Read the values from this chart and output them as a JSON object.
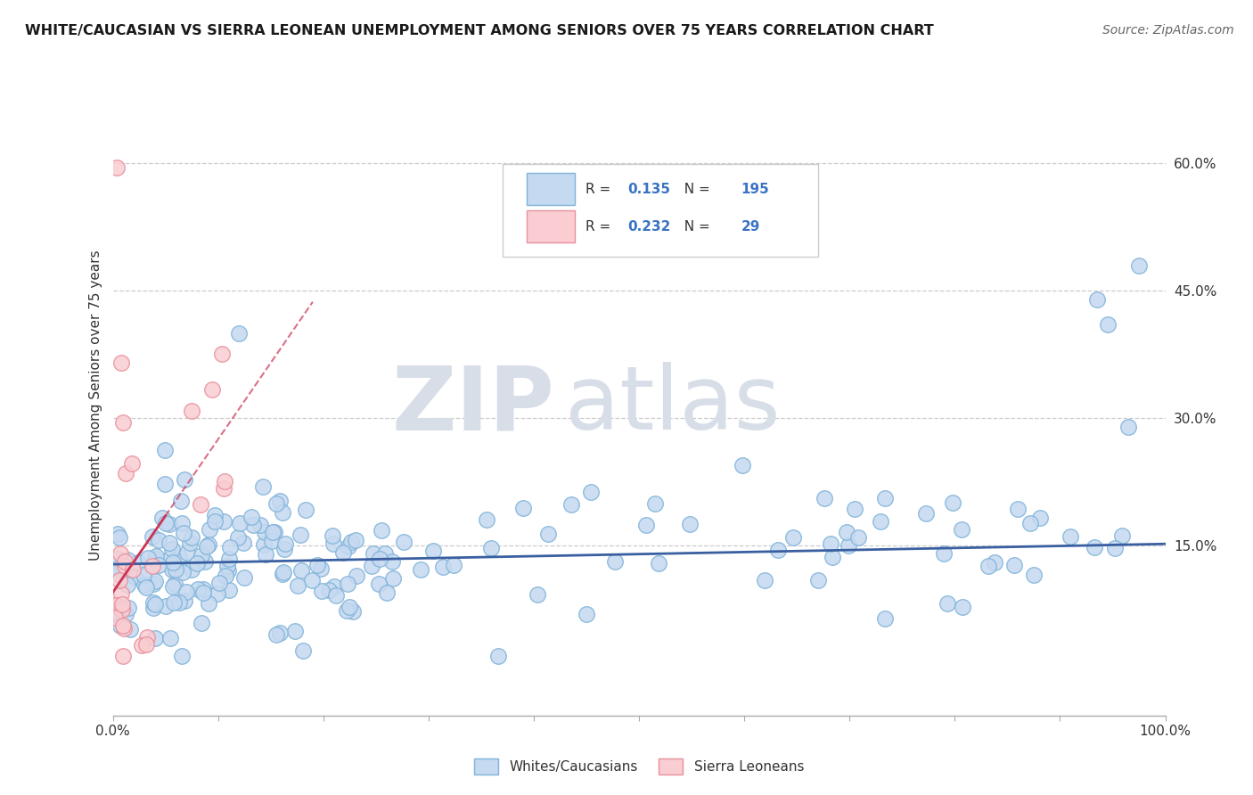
{
  "title": "WHITE/CAUCASIAN VS SIERRA LEONEAN UNEMPLOYMENT AMONG SENIORS OVER 75 YEARS CORRELATION CHART",
  "source": "Source: ZipAtlas.com",
  "ylabel": "Unemployment Among Seniors over 75 years",
  "xlim": [
    0,
    1.0
  ],
  "ylim": [
    -0.05,
    0.68
  ],
  "ytick_positions": [
    0.15,
    0.3,
    0.45,
    0.6
  ],
  "ytick_labels": [
    "15.0%",
    "30.0%",
    "45.0%",
    "60.0%"
  ],
  "blue_color": "#c5d9f0",
  "blue_edge": "#7fb3d9",
  "pink_color": "#f9cdd2",
  "pink_edge": "#e8909a",
  "trend_blue": "#3a5fa0",
  "trend_pink": "#cc3355",
  "R_blue": 0.135,
  "N_blue": 195,
  "R_pink": 0.232,
  "N_pink": 29,
  "watermark_ZIP": "ZIP",
  "watermark_atlas": "atlas",
  "watermark_color": "#d8dee8",
  "blue_intercept": 0.128,
  "blue_slope": 0.024,
  "pink_intercept": 0.095,
  "pink_slope": 1.8
}
